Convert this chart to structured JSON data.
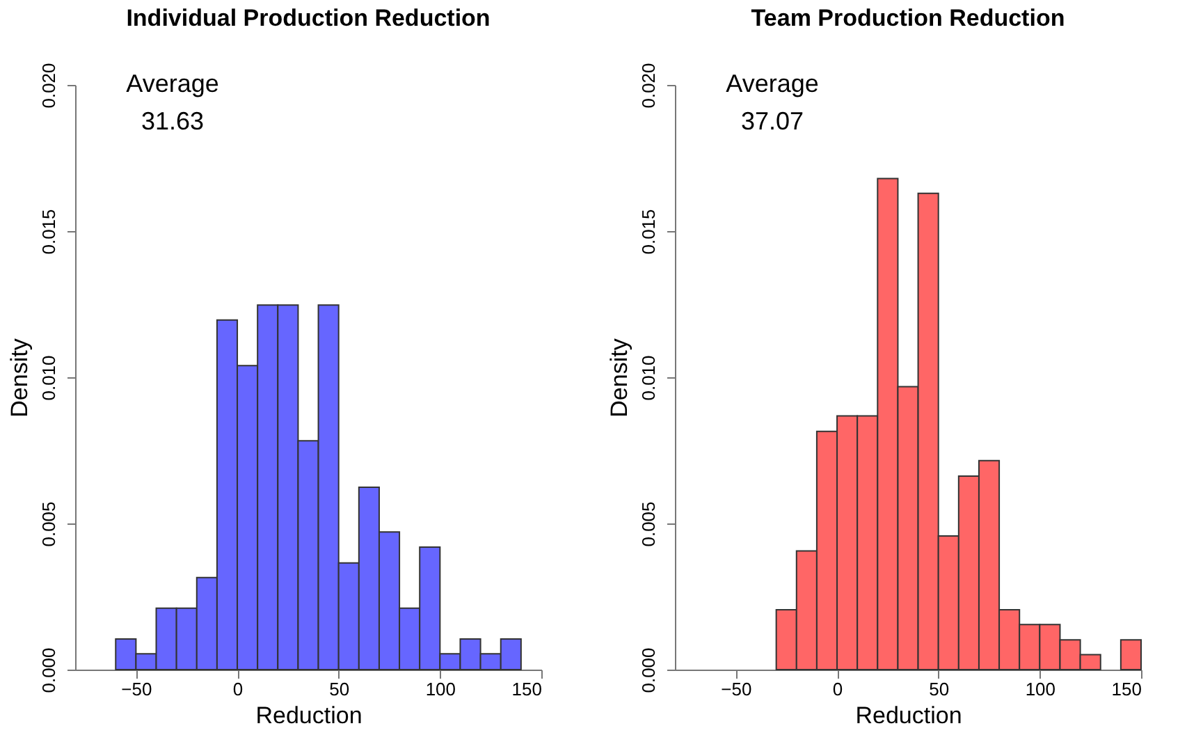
{
  "chart_data": [
    {
      "type": "histogram",
      "title": "Individual Production Reduction",
      "xlabel": "Reduction",
      "ylabel": "Density",
      "annotations": [
        "Average",
        "31.63"
      ],
      "color": "#6666ff",
      "bins": [
        -60,
        -50,
        -40,
        -30,
        -20,
        -10,
        0,
        10,
        20,
        30,
        40,
        50,
        60,
        70,
        80,
        90,
        100,
        110,
        120,
        130,
        140
      ],
      "values": [
        0.00105,
        0.00054,
        0.0021,
        0.0021,
        0.00315,
        0.01196,
        0.0104,
        0.01247,
        0.01247,
        0.00783,
        0.01247,
        0.00365,
        0.00624,
        0.00471,
        0.0021,
        0.00419,
        0.00054,
        0.00105,
        0.00054,
        0.00105
      ],
      "xlim": [
        -80,
        150
      ],
      "xticks": [
        -50,
        0,
        50,
        100,
        150
      ],
      "ylim": [
        0,
        0.02
      ],
      "yticks": [
        {
          "value": 0,
          "label": "0.000"
        },
        {
          "value": 0.005,
          "label": "0.005"
        },
        {
          "value": 0.01,
          "label": "0.010"
        },
        {
          "value": 0.015,
          "label": "0.015"
        },
        {
          "value": 0.02,
          "label": "0.020"
        }
      ],
      "grid": false
    },
    {
      "type": "histogram",
      "title": "Team Production Reduction",
      "xlabel": "Reduction",
      "ylabel": "Density",
      "annotations": [
        "Average",
        "37.07"
      ],
      "color": "#ff6666",
      "bins": [
        -30,
        -20,
        -10,
        0,
        10,
        20,
        30,
        40,
        50,
        60,
        70,
        80,
        90,
        100,
        110,
        120,
        130,
        140,
        150
      ],
      "values": [
        0.00205,
        0.00406,
        0.00815,
        0.00868,
        0.00868,
        0.0168,
        0.00968,
        0.01629,
        0.00457,
        0.00662,
        0.00715,
        0.00205,
        0.00154,
        0.00154,
        0.00102,
        0.00051,
        0,
        0.00102
      ],
      "xlim": [
        -80,
        150
      ],
      "xticks": [
        -50,
        0,
        50,
        100,
        150
      ],
      "ylim": [
        0,
        0.02
      ],
      "yticks": [
        {
          "value": 0,
          "label": "0.000"
        },
        {
          "value": 0.005,
          "label": "0.005"
        },
        {
          "value": 0.01,
          "label": "0.010"
        },
        {
          "value": 0.015,
          "label": "0.015"
        },
        {
          "value": 0.02,
          "label": "0.020"
        }
      ],
      "grid": false
    }
  ]
}
